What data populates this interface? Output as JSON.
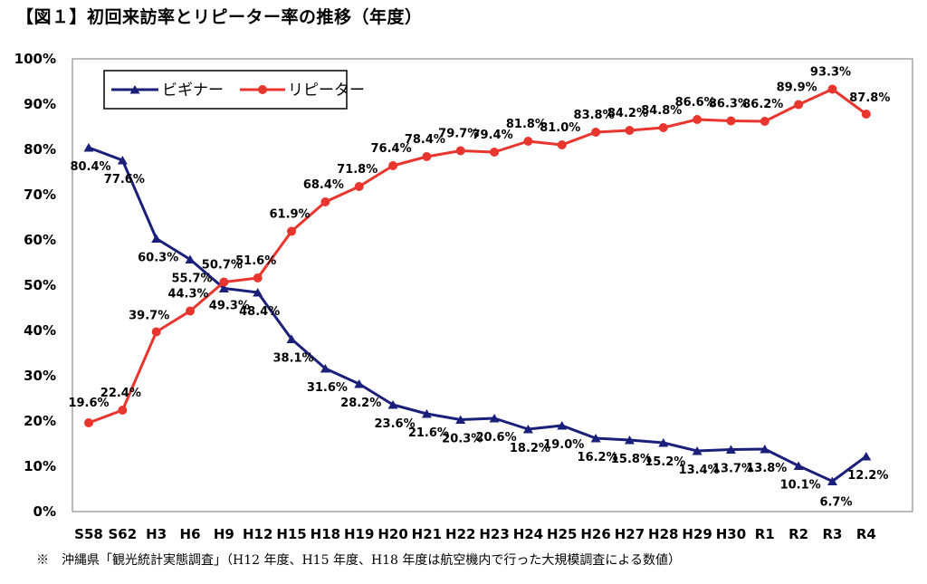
{
  "title": "【図１】初回来訪率とリピーター率の推移（年度）",
  "note": "※　沖縄県「観光統計実態調査」（H12 年度、H15 年度、H18 年度は航空機内で行った大規模調査による数値）",
  "chart_data": {
    "type": "line",
    "categories": [
      "S58",
      "S62",
      "H3",
      "H6",
      "H9",
      "H12",
      "H15",
      "H18",
      "H19",
      "H20",
      "H21",
      "H22",
      "H23",
      "H24",
      "H25",
      "H26",
      "H27",
      "H28",
      "H29",
      "H30",
      "R1",
      "R2",
      "R3",
      "R4"
    ],
    "series": [
      {
        "name": "ビギナー",
        "color": "#1a1f7a",
        "marker": "triangle",
        "values": [
          80.4,
          77.6,
          60.3,
          55.7,
          49.3,
          48.4,
          38.1,
          31.6,
          28.2,
          23.6,
          21.6,
          20.3,
          20.6,
          18.2,
          19.0,
          16.2,
          15.8,
          15.2,
          13.4,
          13.7,
          13.8,
          10.1,
          6.7,
          12.2
        ],
        "labels": [
          "80.4%",
          "77.6%",
          "60.3%",
          "55.7%",
          "49.3%",
          "48.4%",
          "38.1%",
          "31.6%",
          "28.2%",
          "23.6%",
          "21.6%",
          "20.3%",
          "20.6%",
          "18.2%",
          "19.0%",
          "16.2%",
          "15.8%",
          "15.2%",
          "13.4%",
          "13.7%",
          "13.8%",
          "10.1%",
          "6.7%",
          "12.2%"
        ]
      },
      {
        "name": "リピーター",
        "color": "#e8352e",
        "marker": "circle",
        "values": [
          19.6,
          22.4,
          39.7,
          44.3,
          50.7,
          51.6,
          61.9,
          68.4,
          71.8,
          76.4,
          78.4,
          79.7,
          79.4,
          81.8,
          81.0,
          83.8,
          84.2,
          84.8,
          86.6,
          86.3,
          86.2,
          89.9,
          93.3,
          87.8
        ],
        "labels": [
          "19.6%",
          "22.4%",
          "39.7%",
          "44.3%",
          "50.7%",
          "51.6%",
          "61.9%",
          "68.4%",
          "71.8%",
          "76.4%",
          "78.4%",
          "79.7%",
          "79.4%",
          "81.8%",
          "81.0%",
          "83.8%",
          "84.2%",
          "84.8%",
          "86.6%",
          "86.3%",
          "86.2%",
          "89.9%",
          "93.3%",
          "87.8%"
        ]
      }
    ],
    "yticks": [
      "0%",
      "10%",
      "20%",
      "30%",
      "40%",
      "50%",
      "60%",
      "70%",
      "80%",
      "90%",
      "100%"
    ],
    "ylim": [
      0,
      100
    ],
    "grid": false,
    "legend": "top-left"
  }
}
